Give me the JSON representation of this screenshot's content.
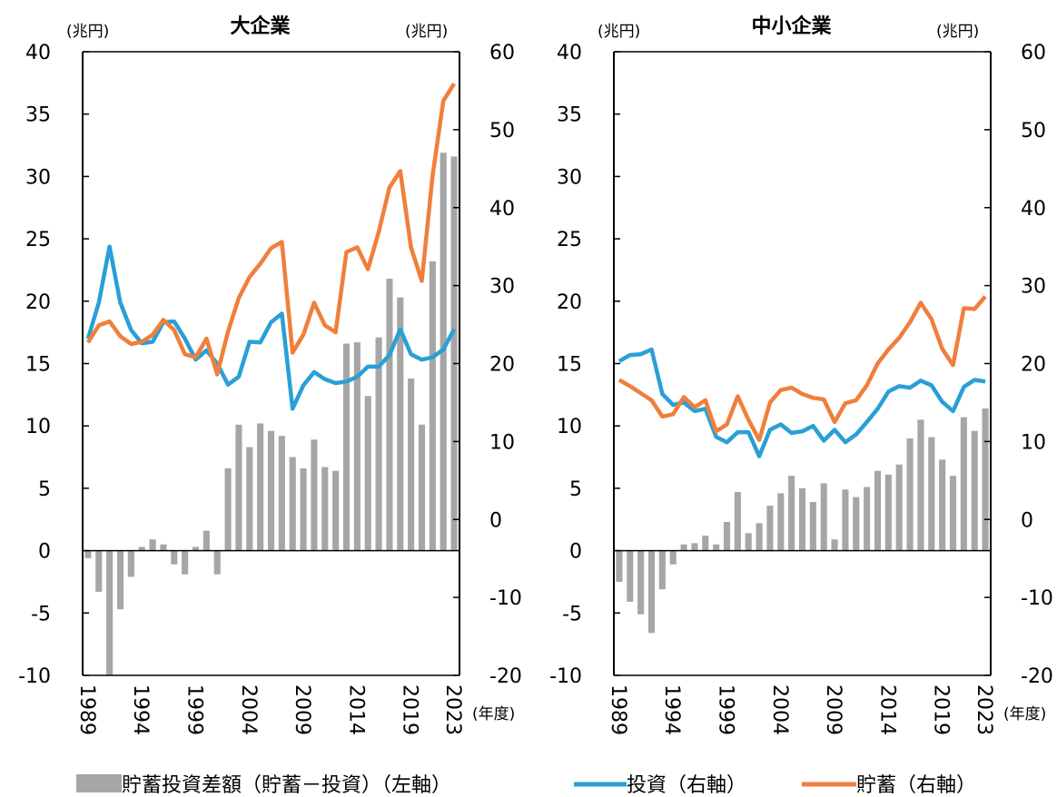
{
  "legend": {
    "bar": "貯蓄投資差額（貯蓄－投資）（左軸）",
    "investment": "投資（右軸）",
    "savings": "貯蓄（右軸）"
  },
  "colors": {
    "bar": "#a6a6a6",
    "investment": "#2a9fd6",
    "savings": "#f07f3c"
  },
  "chart_data": [
    {
      "type": "bar+line",
      "title": "大企業",
      "left_unit": "(兆円)",
      "right_unit": "(兆円)",
      "x_unit": "(年度)",
      "ylim_left": [
        -10,
        40
      ],
      "ylim_right": [
        -20,
        60
      ],
      "left_ticks": [
        -10,
        -5,
        0,
        5,
        10,
        15,
        20,
        25,
        30,
        35,
        40
      ],
      "right_ticks": [
        -20,
        -10,
        0,
        10,
        20,
        30,
        40,
        50,
        60
      ],
      "x_tick_labels": [
        "1989",
        "1994",
        "1999",
        "2004",
        "2009",
        "2014",
        "2019",
        "2023"
      ],
      "x": [
        1989,
        1990,
        1991,
        1992,
        1993,
        1994,
        1995,
        1996,
        1997,
        1998,
        1999,
        2000,
        2001,
        2002,
        2003,
        2004,
        2005,
        2006,
        2007,
        2008,
        2009,
        2010,
        2011,
        2012,
        2013,
        2014,
        2015,
        2016,
        2017,
        2018,
        2019,
        2020,
        2021,
        2022,
        2023
      ],
      "bars": [
        -0.6,
        -3.3,
        -10,
        -4.7,
        -2.1,
        0.3,
        0.9,
        0.5,
        -1.1,
        -1.9,
        0.3,
        1.6,
        -1.9,
        6.6,
        10.1,
        8.3,
        10.2,
        9.6,
        9.2,
        7.5,
        6.6,
        8.9,
        6.7,
        6.4,
        16.6,
        16.7,
        12.4,
        17.1,
        21.8,
        20.3,
        13.8,
        10.1,
        23.2,
        31.9,
        31.6
      ],
      "investment": [
        23.2,
        27.8,
        35,
        27.8,
        24.3,
        22.6,
        22.8,
        25.3,
        25.4,
        23.2,
        20.5,
        21.7,
        20,
        17.3,
        18.3,
        22.8,
        22.7,
        25.3,
        26.4,
        14.2,
        17.2,
        18.9,
        18,
        17.5,
        17.7,
        18.3,
        19.6,
        19.6,
        21.1,
        24.4,
        21.2,
        20.5,
        20.8,
        21.8,
        24.4
      ],
      "savings": [
        22.7,
        24.9,
        25.4,
        23.5,
        22.5,
        22.8,
        23.7,
        25.6,
        24.3,
        21.2,
        20.8,
        23.2,
        18.6,
        24.1,
        28.4,
        31.1,
        32.8,
        34.8,
        35.6,
        21.4,
        23.7,
        27.8,
        24.9,
        24,
        34.3,
        34.9,
        32.1,
        36.9,
        42.6,
        44.7,
        34.9,
        30.6,
        44.1,
        53.7,
        55.9
      ]
    },
    {
      "type": "bar+line",
      "title": "中小企業",
      "left_unit": "(兆円)",
      "right_unit": "(兆円)",
      "x_unit": "(年度)",
      "ylim_left": [
        -10,
        40
      ],
      "ylim_right": [
        -20,
        60
      ],
      "left_ticks": [
        -10,
        -5,
        0,
        5,
        10,
        15,
        20,
        25,
        30,
        35,
        40
      ],
      "right_ticks": [
        -20,
        -10,
        0,
        10,
        20,
        30,
        40,
        50,
        60
      ],
      "x_tick_labels": [
        "1989",
        "1994",
        "1999",
        "2004",
        "2009",
        "2014",
        "2019",
        "2023"
      ],
      "x": [
        1989,
        1990,
        1991,
        1992,
        1993,
        1994,
        1995,
        1996,
        1997,
        1998,
        1999,
        2000,
        2001,
        2002,
        2003,
        2004,
        2005,
        2006,
        2007,
        2008,
        2009,
        2010,
        2011,
        2012,
        2013,
        2014,
        2015,
        2016,
        2017,
        2018,
        2019,
        2020,
        2021,
        2022,
        2023
      ],
      "bars": [
        -2.5,
        -4.1,
        -5.1,
        -6.6,
        -3.1,
        -1.1,
        0.5,
        0.6,
        1.2,
        0.5,
        2.3,
        4.7,
        1.4,
        2.2,
        3.6,
        4.6,
        6.0,
        5.0,
        3.9,
        5.4,
        0.9,
        4.9,
        4.3,
        5.1,
        6.4,
        6.1,
        6.9,
        9.0,
        10.5,
        9.1,
        7.3,
        6.0,
        10.7,
        9.6,
        11.4
      ],
      "investment": [
        20.3,
        21.1,
        21.2,
        21.8,
        16.1,
        14.7,
        15,
        13.9,
        14.2,
        10.6,
        9.9,
        11.2,
        11.2,
        8.1,
        11.5,
        12.2,
        11.1,
        11.3,
        12,
        10.1,
        11.5,
        9.9,
        10.9,
        12.5,
        14.2,
        16.4,
        17.1,
        16.9,
        17.8,
        17.2,
        15.1,
        13.9,
        17,
        17.9,
        17.7
      ],
      "savings": [
        17.9,
        17.1,
        16.2,
        15.3,
        13.2,
        13.5,
        15.7,
        14.4,
        15.3,
        11.3,
        12.2,
        15.8,
        12.8,
        10.2,
        15,
        16.6,
        16.9,
        16.1,
        15.6,
        15.4,
        12.5,
        14.9,
        15.3,
        17.2,
        20,
        21.8,
        23.3,
        25.3,
        27.8,
        25.7,
        21.9,
        19.8,
        27.1,
        27,
        28.6
      ]
    }
  ]
}
